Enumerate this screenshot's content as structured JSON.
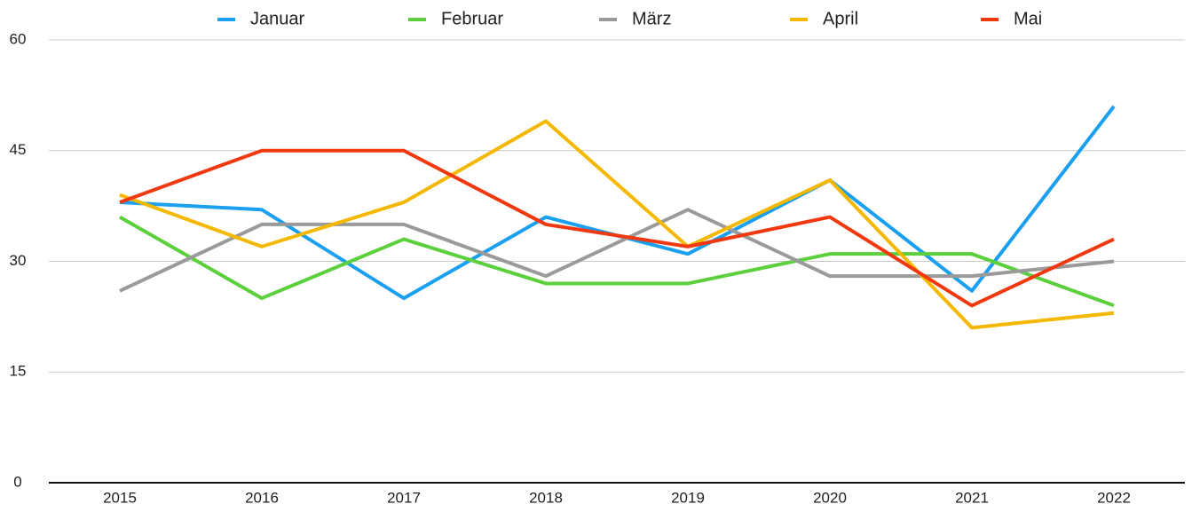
{
  "chart_data": {
    "type": "line",
    "categories": [
      "2015",
      "2016",
      "2017",
      "2018",
      "2019",
      "2020",
      "2021",
      "2022"
    ],
    "series": [
      {
        "name": "Januar",
        "color": "#1aa0ef",
        "values": [
          38,
          37,
          25,
          36,
          31,
          41,
          26,
          51
        ]
      },
      {
        "name": "Februar",
        "color": "#5ccf3c",
        "values": [
          36,
          25,
          33,
          27,
          27,
          31,
          31,
          24
        ]
      },
      {
        "name": "März",
        "color": "#9a9a9a",
        "values": [
          26,
          35,
          35,
          28,
          37,
          28,
          28,
          30
        ]
      },
      {
        "name": "April",
        "color": "#f5b800",
        "values": [
          39,
          32,
          38,
          49,
          32,
          41,
          21,
          23
        ]
      },
      {
        "name": "Mai",
        "color": "#f2380f",
        "values": [
          38,
          45,
          45,
          35,
          32,
          36,
          24,
          33
        ]
      }
    ],
    "ylim": [
      0,
      60
    ],
    "yticks": [
      0,
      15,
      30,
      45,
      60
    ],
    "grid": true,
    "legend": "top"
  }
}
